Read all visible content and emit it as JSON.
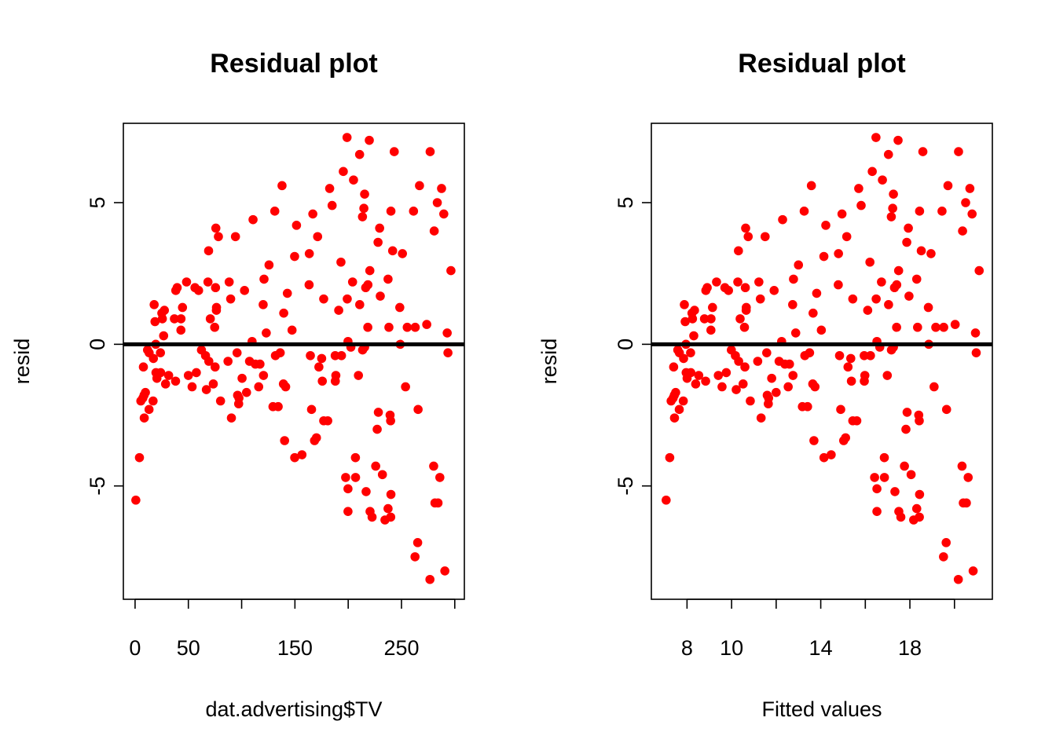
{
  "colors": {
    "points": "#ff0000",
    "reference_line": "#000000",
    "axes": "#000000",
    "background": "#ffffff"
  },
  "chart_data": [
    {
      "type": "scatter",
      "title": "Residual plot",
      "xlabel": "dat.advertising$TV",
      "ylabel": "resid",
      "xlim": [
        -11,
        309
      ],
      "ylim": [
        -9.0,
        7.8
      ],
      "x_ticks": [
        0,
        50,
        150,
        250
      ],
      "x_axis_ticks": [
        0,
        50,
        100,
        150,
        200,
        250,
        300
      ],
      "y_ticks": [
        -5,
        0,
        5
      ],
      "hline": 0,
      "grid": false,
      "legend": "none",
      "points": [
        {
          "x": 0.7,
          "y": -5.5
        },
        {
          "x": 4.1,
          "y": -4.0
        },
        {
          "x": 5.4,
          "y": -2.0
        },
        {
          "x": 7.3,
          "y": -1.9
        },
        {
          "x": 7.8,
          "y": -0.8
        },
        {
          "x": 8.4,
          "y": -1.8
        },
        {
          "x": 8.6,
          "y": -2.6
        },
        {
          "x": 9.7,
          "y": -1.7
        },
        {
          "x": 11.7,
          "y": -0.2
        },
        {
          "x": 13.1,
          "y": -2.3
        },
        {
          "x": 13.2,
          "y": -0.3
        },
        {
          "x": 16.9,
          "y": -2.0
        },
        {
          "x": 17.2,
          "y": -0.5
        },
        {
          "x": 17.9,
          "y": 1.4
        },
        {
          "x": 18.7,
          "y": 0.8
        },
        {
          "x": 19.4,
          "y": 0.0
        },
        {
          "x": 19.6,
          "y": -1.0
        },
        {
          "x": 20.5,
          "y": -1.2
        },
        {
          "x": 23.8,
          "y": -0.3
        },
        {
          "x": 24.0,
          "y": -1.0
        },
        {
          "x": 25.1,
          "y": 1.1
        },
        {
          "x": 25.6,
          "y": 0.9
        },
        {
          "x": 26.8,
          "y": 0.3
        },
        {
          "x": 27.5,
          "y": 1.2
        },
        {
          "x": 28.6,
          "y": -1.4
        },
        {
          "x": 31.5,
          "y": -1.1
        },
        {
          "x": 36.9,
          "y": 0.9
        },
        {
          "x": 38.0,
          "y": -1.3
        },
        {
          "x": 38.2,
          "y": 1.9
        },
        {
          "x": 39.5,
          "y": 2.0
        },
        {
          "x": 43.0,
          "y": 0.5
        },
        {
          "x": 43.1,
          "y": 0.9
        },
        {
          "x": 44.5,
          "y": 1.3
        },
        {
          "x": 48.3,
          "y": 2.2
        },
        {
          "x": 50.0,
          "y": -1.1
        },
        {
          "x": 53.5,
          "y": -1.5
        },
        {
          "x": 56.2,
          "y": 2.0
        },
        {
          "x": 57.5,
          "y": -1.0
        },
        {
          "x": 59.6,
          "y": 1.9
        },
        {
          "x": 62.3,
          "y": -0.2
        },
        {
          "x": 66.1,
          "y": -0.4
        },
        {
          "x": 66.9,
          "y": -1.6
        },
        {
          "x": 68.4,
          "y": 2.2
        },
        {
          "x": 69.0,
          "y": 3.3
        },
        {
          "x": 69.2,
          "y": -0.6
        },
        {
          "x": 70.6,
          "y": 0.9
        },
        {
          "x": 73.4,
          "y": -1.4
        },
        {
          "x": 74.7,
          "y": 0.6
        },
        {
          "x": 75.1,
          "y": -0.8
        },
        {
          "x": 75.5,
          "y": 2.0
        },
        {
          "x": 75.8,
          "y": 4.1
        },
        {
          "x": 76.3,
          "y": 1.2
        },
        {
          "x": 76.4,
          "y": 1.3
        },
        {
          "x": 78.2,
          "y": 3.8
        },
        {
          "x": 80.2,
          "y": -2.0
        },
        {
          "x": 87.2,
          "y": -0.6
        },
        {
          "x": 88.3,
          "y": 2.2
        },
        {
          "x": 89.7,
          "y": 1.6
        },
        {
          "x": 90.4,
          "y": -2.6
        },
        {
          "x": 94.2,
          "y": 3.8
        },
        {
          "x": 95.7,
          "y": -0.3
        },
        {
          "x": 96.2,
          "y": -1.8
        },
        {
          "x": 97.2,
          "y": -2.1
        },
        {
          "x": 97.5,
          "y": -1.9
        },
        {
          "x": 100.4,
          "y": -1.2
        },
        {
          "x": 102.7,
          "y": 1.9
        },
        {
          "x": 104.6,
          "y": -1.7
        },
        {
          "x": 107.4,
          "y": -0.6
        },
        {
          "x": 109.8,
          "y": 0.1
        },
        {
          "x": 110.7,
          "y": 4.4
        },
        {
          "x": 112.9,
          "y": -0.7
        },
        {
          "x": 116.0,
          "y": -1.5
        },
        {
          "x": 117.2,
          "y": -0.7
        },
        {
          "x": 120.2,
          "y": 1.4
        },
        {
          "x": 120.5,
          "y": -1.1
        },
        {
          "x": 121.0,
          "y": 2.3
        },
        {
          "x": 123.1,
          "y": 0.4
        },
        {
          "x": 125.7,
          "y": 2.8
        },
        {
          "x": 129.4,
          "y": -2.2
        },
        {
          "x": 131.1,
          "y": 4.7
        },
        {
          "x": 131.7,
          "y": -0.4
        },
        {
          "x": 134.3,
          "y": -2.2
        },
        {
          "x": 136.2,
          "y": -0.3
        },
        {
          "x": 137.9,
          "y": 5.6
        },
        {
          "x": 139.2,
          "y": -1.4
        },
        {
          "x": 139.5,
          "y": 1.1
        },
        {
          "x": 140.3,
          "y": -3.4
        },
        {
          "x": 141.3,
          "y": -1.5
        },
        {
          "x": 142.9,
          "y": 1.8
        },
        {
          "x": 147.3,
          "y": 0.5
        },
        {
          "x": 149.7,
          "y": 3.1
        },
        {
          "x": 149.8,
          "y": -4.0
        },
        {
          "x": 151.5,
          "y": 4.2
        },
        {
          "x": 156.6,
          "y": -3.9
        },
        {
          "x": 163.3,
          "y": 2.1
        },
        {
          "x": 163.5,
          "y": 3.2
        },
        {
          "x": 164.5,
          "y": -0.4
        },
        {
          "x": 165.6,
          "y": -2.3
        },
        {
          "x": 166.8,
          "y": 4.6
        },
        {
          "x": 168.4,
          "y": -3.4
        },
        {
          "x": 170.2,
          "y": -3.3
        },
        {
          "x": 171.3,
          "y": 3.8
        },
        {
          "x": 172.5,
          "y": -0.8
        },
        {
          "x": 175.1,
          "y": -0.5
        },
        {
          "x": 175.7,
          "y": -1.3
        },
        {
          "x": 177.0,
          "y": -2.7
        },
        {
          "x": 177.0,
          "y": 1.6
        },
        {
          "x": 180.8,
          "y": -2.7
        },
        {
          "x": 182.6,
          "y": 5.5
        },
        {
          "x": 184.9,
          "y": 4.9
        },
        {
          "x": 187.8,
          "y": -0.4
        },
        {
          "x": 187.9,
          "y": -1.3
        },
        {
          "x": 188.4,
          "y": -1.1
        },
        {
          "x": 191.1,
          "y": 1.2
        },
        {
          "x": 193.2,
          "y": 2.9
        },
        {
          "x": 193.7,
          "y": -0.4
        },
        {
          "x": 195.4,
          "y": 6.1
        },
        {
          "x": 197.6,
          "y": -4.7
        },
        {
          "x": 198.9,
          "y": 7.3
        },
        {
          "x": 199.1,
          "y": 1.6
        },
        {
          "x": 199.8,
          "y": -5.9
        },
        {
          "x": 199.8,
          "y": 0.1
        },
        {
          "x": 199.8,
          "y": -5.1
        },
        {
          "x": 202.5,
          "y": -0.1
        },
        {
          "x": 204.1,
          "y": 2.2
        },
        {
          "x": 205.0,
          "y": 5.8
        },
        {
          "x": 206.8,
          "y": -4.0
        },
        {
          "x": 206.9,
          "y": -4.7
        },
        {
          "x": 209.6,
          "y": -1.1
        },
        {
          "x": 210.7,
          "y": 6.7
        },
        {
          "x": 210.8,
          "y": 1.4
        },
        {
          "x": 213.4,
          "y": 4.5
        },
        {
          "x": 213.5,
          "y": -0.2
        },
        {
          "x": 214.7,
          "y": 4.8
        },
        {
          "x": 215.4,
          "y": 5.3
        },
        {
          "x": 215.4,
          "y": -0.1
        },
        {
          "x": 216.4,
          "y": 2.0
        },
        {
          "x": 216.8,
          "y": -5.2
        },
        {
          "x": 218.4,
          "y": 0.6
        },
        {
          "x": 218.5,
          "y": 2.1
        },
        {
          "x": 219.8,
          "y": 7.2
        },
        {
          "x": 220.3,
          "y": 2.6
        },
        {
          "x": 220.5,
          "y": -5.9
        },
        {
          "x": 222.4,
          "y": -6.1
        },
        {
          "x": 225.8,
          "y": -4.3
        },
        {
          "x": 227.2,
          "y": -3.0
        },
        {
          "x": 228.0,
          "y": 3.6
        },
        {
          "x": 228.3,
          "y": -2.4
        },
        {
          "x": 229.5,
          "y": 4.1
        },
        {
          "x": 230.1,
          "y": 1.7
        },
        {
          "x": 232.1,
          "y": -4.6
        },
        {
          "x": 234.5,
          "y": -6.2
        },
        {
          "x": 237.4,
          "y": -5.8
        },
        {
          "x": 237.4,
          "y": 2.3
        },
        {
          "x": 238.2,
          "y": 0.6
        },
        {
          "x": 239.3,
          "y": -2.5
        },
        {
          "x": 239.8,
          "y": -2.7
        },
        {
          "x": 239.9,
          "y": -6.1
        },
        {
          "x": 240.1,
          "y": -5.3
        },
        {
          "x": 240.1,
          "y": 4.7
        },
        {
          "x": 241.7,
          "y": 3.3
        },
        {
          "x": 243.2,
          "y": 6.8
        },
        {
          "x": 248.4,
          "y": 1.3
        },
        {
          "x": 248.8,
          "y": 0.0
        },
        {
          "x": 250.9,
          "y": 3.2
        },
        {
          "x": 253.8,
          "y": -1.5
        },
        {
          "x": 255.4,
          "y": 0.6
        },
        {
          "x": 261.3,
          "y": 4.7
        },
        {
          "x": 262.7,
          "y": -7.5
        },
        {
          "x": 262.9,
          "y": 0.6
        },
        {
          "x": 265.2,
          "y": -7.0
        },
        {
          "x": 265.6,
          "y": -2.3
        },
        {
          "x": 266.9,
          "y": 5.6
        },
        {
          "x": 273.7,
          "y": 0.7
        },
        {
          "x": 276.7,
          "y": -8.3
        },
        {
          "x": 276.9,
          "y": 6.8
        },
        {
          "x": 280.2,
          "y": -4.3
        },
        {
          "x": 280.7,
          "y": 4.0
        },
        {
          "x": 281.4,
          "y": -5.6
        },
        {
          "x": 283.6,
          "y": 5.0
        },
        {
          "x": 284.3,
          "y": -5.6
        },
        {
          "x": 286.0,
          "y": -4.7
        },
        {
          "x": 287.6,
          "y": 5.5
        },
        {
          "x": 289.7,
          "y": 4.6
        },
        {
          "x": 290.7,
          "y": -8.0
        },
        {
          "x": 292.9,
          "y": 0.4
        },
        {
          "x": 293.6,
          "y": -0.3
        },
        {
          "x": 296.4,
          "y": 2.6
        }
      ]
    },
    {
      "type": "scatter",
      "title": "Residual plot",
      "xlabel": "Fitted values",
      "ylabel": "resid",
      "xlim": [
        6.4,
        21.7
      ],
      "ylim": [
        -9.0,
        7.8
      ],
      "x_ticks": [
        8,
        10,
        14,
        18
      ],
      "x_axis_ticks": [
        8,
        10,
        12,
        14,
        16,
        18,
        20
      ],
      "y_ticks": [
        -5,
        0,
        5
      ],
      "hline": 0,
      "grid": false,
      "legend": "none",
      "fitted_intercept": 7.03,
      "fitted_slope": 0.0475
    }
  ]
}
